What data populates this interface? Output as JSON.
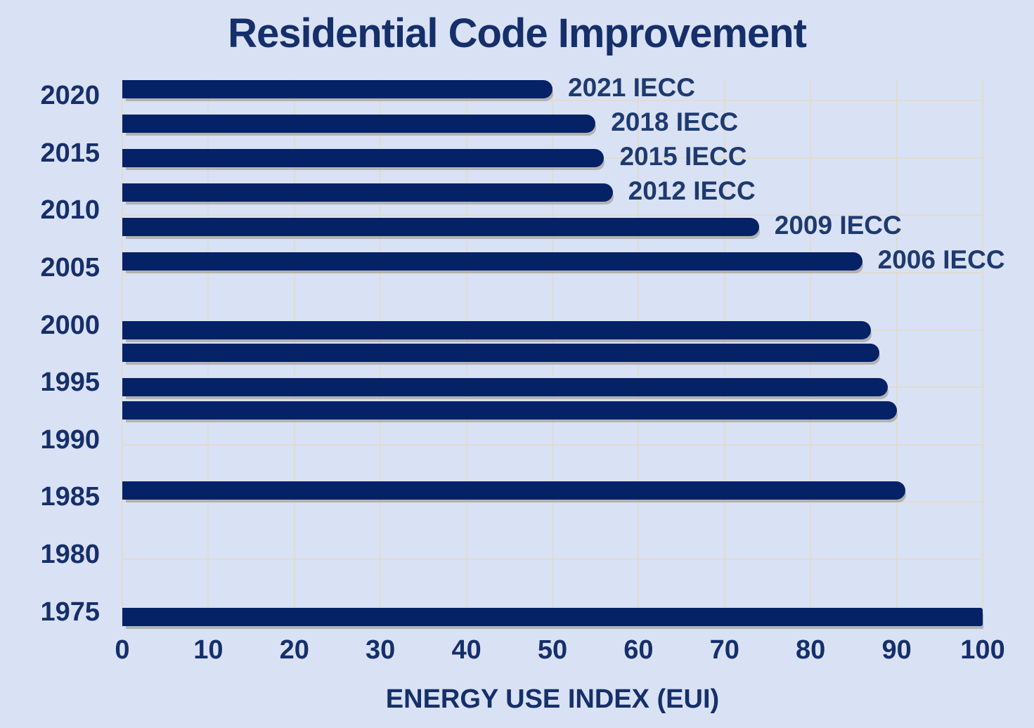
{
  "title": "Residential Code Improvement",
  "x_axis": {
    "label": "ENERGY USE INDEX (EUI)",
    "ticks": [
      0,
      10,
      20,
      30,
      40,
      50,
      60,
      70,
      80,
      90,
      100
    ],
    "min": 0,
    "max": 100
  },
  "y_axis": {
    "ticks": [
      2020,
      2015,
      2010,
      2005,
      2000,
      1995,
      1990,
      1985,
      1980,
      1975
    ],
    "min": 1973.5,
    "max": 2022.5
  },
  "chart_data": {
    "type": "bar",
    "orientation": "horizontal",
    "title": "Residential Code Improvement",
    "xlabel": "ENERGY USE INDEX (EUI)",
    "ylabel": "",
    "xlim": [
      0,
      100
    ],
    "x_ticks": [
      0,
      10,
      20,
      30,
      40,
      50,
      60,
      70,
      80,
      90,
      100
    ],
    "year_ticks": [
      2020,
      2015,
      2010,
      2005,
      2000,
      1995,
      1990,
      1985,
      1980,
      1975
    ],
    "grid": "on",
    "legend": "none",
    "bars": [
      {
        "year": 2021,
        "value": 50,
        "label": "2021 IECC"
      },
      {
        "year": 2018,
        "value": 55,
        "label": "2018 IECC"
      },
      {
        "year": 2015,
        "value": 56,
        "label": "2015 IECC"
      },
      {
        "year": 2012,
        "value": 57,
        "label": "2012 IECC"
      },
      {
        "year": 2009,
        "value": 74,
        "label": "2009 IECC"
      },
      {
        "year": 2006,
        "value": 86,
        "label": "2006 IECC"
      },
      {
        "year": 2000,
        "value": 87,
        "label": ""
      },
      {
        "year": 1998,
        "value": 88,
        "label": ""
      },
      {
        "year": 1995,
        "value": 89,
        "label": ""
      },
      {
        "year": 1993,
        "value": 90,
        "label": ""
      },
      {
        "year": 1986,
        "value": 91,
        "label": ""
      },
      {
        "year": 1975,
        "value": 100,
        "label": ""
      }
    ],
    "colors": {
      "background": "#d9e1f4",
      "bar": "#052266",
      "gridline": "#e0dcd1",
      "title_text": "#152f6a",
      "tick_text": "#152f6a",
      "bar_label_text": "#1e3a6f"
    }
  }
}
